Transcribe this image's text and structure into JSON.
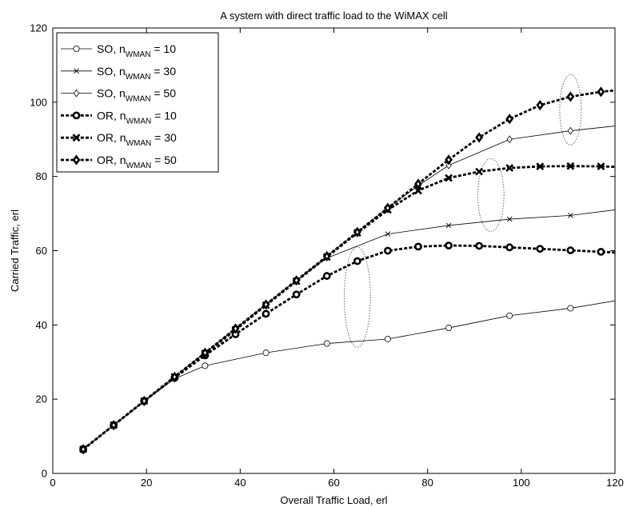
{
  "chart_data": {
    "type": "line",
    "title": "A system with direct traffic load to the WiMAX cell",
    "xlabel": "Overall Traffic Load, erl",
    "ylabel": "Carried Traffic, erl",
    "xlim": [
      0,
      120
    ],
    "ylim": [
      0,
      120
    ],
    "xticks": [
      0,
      20,
      40,
      60,
      80,
      100,
      120
    ],
    "yticks": [
      0,
      20,
      40,
      60,
      80,
      100,
      120
    ],
    "grid": false,
    "legend_position": "top-left",
    "series": [
      {
        "name_main": "SO, n",
        "name_sub": "WMAN",
        "name_tail": " = 10",
        "marker": "circle",
        "style": "thin",
        "x": [
          6.5,
          13,
          19.5,
          26,
          32.5,
          45.5,
          58.5,
          71.5,
          84.5,
          97.5,
          110.5,
          120
        ],
        "y": [
          6.5,
          13,
          19.4,
          25.5,
          29,
          32.5,
          35,
          36.2,
          39.2,
          42.5,
          44.5,
          46.5
        ]
      },
      {
        "name_main": "SO, n",
        "name_sub": "WMAN",
        "name_tail": " = 30",
        "marker": "x",
        "style": "thin",
        "x": [
          6.5,
          13,
          19.5,
          26,
          32.5,
          39,
          45.5,
          52,
          58.5,
          71.5,
          84.5,
          97.5,
          110.5,
          120
        ],
        "y": [
          6.5,
          13,
          19.5,
          26,
          32.5,
          39,
          45.5,
          52,
          58,
          64.5,
          66.8,
          68.5,
          69.5,
          71
        ]
      },
      {
        "name_main": "SO, n",
        "name_sub": "WMAN",
        "name_tail": " = 50",
        "marker": "diamond",
        "style": "thin",
        "x": [
          6.5,
          13,
          19.5,
          26,
          32.5,
          39,
          45.5,
          52,
          58.5,
          65,
          71.5,
          78,
          84.5,
          97.5,
          110.5,
          120
        ],
        "y": [
          6.5,
          13,
          19.5,
          26,
          32.5,
          39,
          45.5,
          52,
          58.5,
          65,
          71.5,
          77.5,
          83,
          90,
          92.3,
          93.6
        ]
      },
      {
        "name_main": "OR, n",
        "name_sub": "WMAN",
        "name_tail": " = 10",
        "marker": "circle",
        "style": "thick",
        "x": [
          6.5,
          13,
          19.5,
          26,
          32.5,
          39,
          45.5,
          52,
          58.5,
          65,
          71.5,
          78,
          84.5,
          91,
          97.5,
          104,
          110.5,
          117,
          120
        ],
        "y": [
          6.5,
          13,
          19.5,
          25.8,
          31.8,
          37.5,
          43,
          48.2,
          53.2,
          57.2,
          60,
          61.1,
          61.4,
          61.3,
          60.9,
          60.5,
          60.1,
          59.7,
          59.5
        ]
      },
      {
        "name_main": "OR, n",
        "name_sub": "WMAN",
        "name_tail": " = 30",
        "marker": "x",
        "style": "thick",
        "x": [
          6.5,
          13,
          19.5,
          26,
          32.5,
          39,
          45.5,
          52,
          58.5,
          65,
          71.5,
          78,
          84.5,
          91,
          97.5,
          104,
          110.5,
          117,
          120
        ],
        "y": [
          6.5,
          13,
          19.5,
          26,
          32.3,
          38.7,
          45.3,
          51.8,
          58.3,
          64.8,
          71,
          76.2,
          79.6,
          81.3,
          82.3,
          82.7,
          82.8,
          82.7,
          82.6
        ]
      },
      {
        "name_main": "OR, n",
        "name_sub": "WMAN",
        "name_tail": " = 50",
        "marker": "diamond",
        "style": "thick",
        "x": [
          6.5,
          13,
          19.5,
          26,
          32.5,
          39,
          45.5,
          52,
          58.5,
          65,
          71.5,
          78,
          84.5,
          91,
          97.5,
          104,
          110.5,
          117,
          120
        ],
        "y": [
          6.5,
          13,
          19.5,
          26,
          32.5,
          39,
          45.5,
          52,
          58.5,
          65,
          71.5,
          78,
          84.5,
          90.5,
          95.5,
          99.2,
          101.5,
          102.8,
          103.2
        ]
      }
    ],
    "annotations": [
      {
        "shape": "ellipse",
        "cx": 110.5,
        "cy": 98,
        "rx": 2.3,
        "ry": 9.5
      },
      {
        "shape": "ellipse",
        "cx": 93.5,
        "cy": 75,
        "rx": 2.8,
        "ry": 9.8
      },
      {
        "shape": "ellipse",
        "cx": 65,
        "cy": 47.5,
        "rx": 2.8,
        "ry": 13.5
      }
    ]
  }
}
